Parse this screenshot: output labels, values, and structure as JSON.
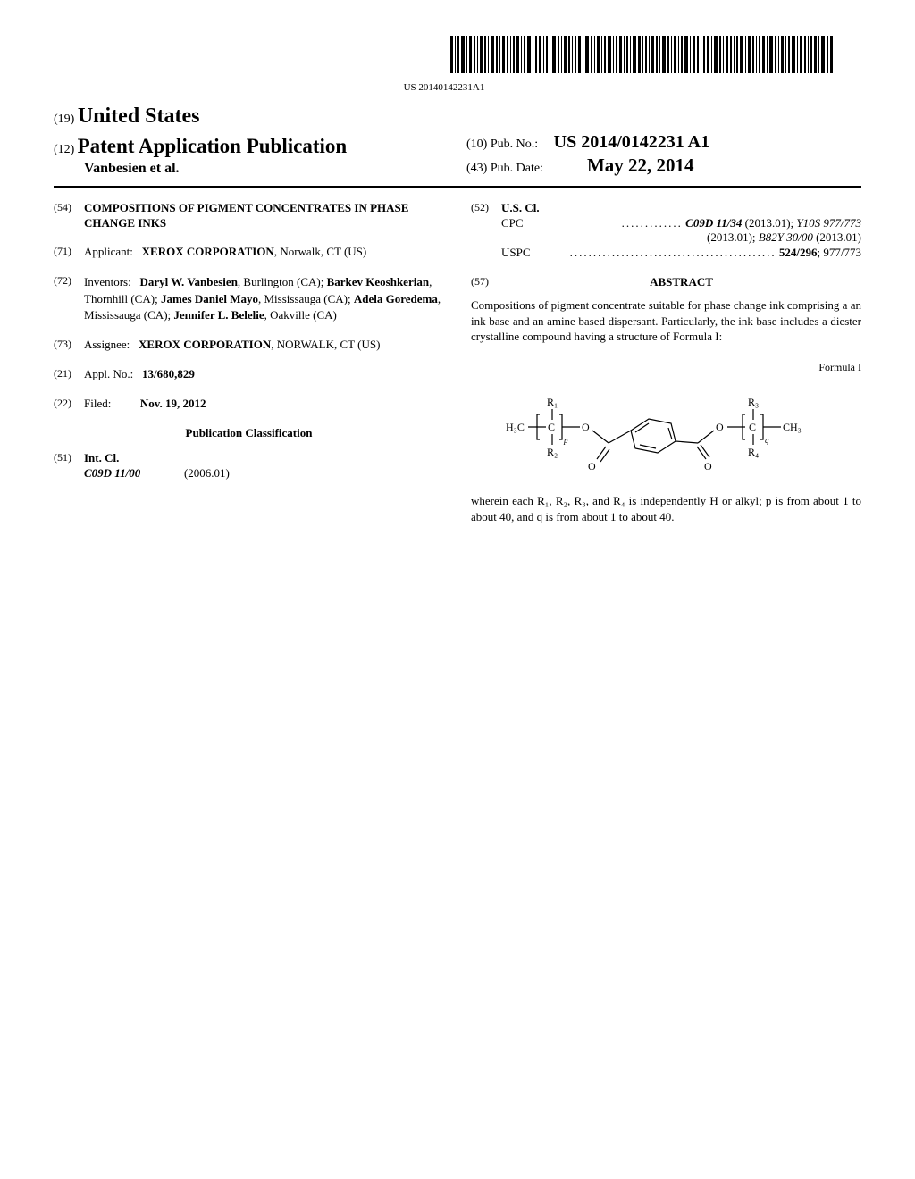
{
  "barcode_text": "US 20140142231A1",
  "header": {
    "country_prefix": "(19)",
    "country": "United States",
    "pub_type_prefix": "(12)",
    "pub_type": "Patent Application Publication",
    "authors": "Vanbesien et al.",
    "pub_no_prefix": "(10)",
    "pub_no_label": "Pub. No.:",
    "pub_no": "US 2014/0142231 A1",
    "pub_date_prefix": "(43)",
    "pub_date_label": "Pub. Date:",
    "pub_date": "May 22, 2014"
  },
  "left": {
    "title": {
      "num": "(54)",
      "text": "COMPOSITIONS OF PIGMENT CONCENTRATES IN PHASE CHANGE INKS"
    },
    "applicant": {
      "num": "(71)",
      "label": "Applicant:",
      "name": "XEROX CORPORATION",
      "location": ", Norwalk, CT (US)"
    },
    "inventors": {
      "num": "(72)",
      "label": "Inventors:",
      "list": [
        {
          "name": "Daryl W. Vanbesien",
          "loc": ", Burlington (CA);"
        },
        {
          "name": "Barkev Keoshkerian",
          "loc": ", Thornhill (CA);"
        },
        {
          "name": "James Daniel Mayo",
          "loc": ", Mississauga (CA);"
        },
        {
          "name": "Adela Goredema",
          "loc": ", Mississauga (CA);"
        },
        {
          "name": "Jennifer L. Belelie",
          "loc": ", Oakville (CA)"
        }
      ]
    },
    "assignee": {
      "num": "(73)",
      "label": "Assignee:",
      "name": "XEROX CORPORATION",
      "location": ", NORWALK, CT (US)"
    },
    "appl_no": {
      "num": "(21)",
      "label": "Appl. No.:",
      "value": "13/680,829"
    },
    "filed": {
      "num": "(22)",
      "label": "Filed:",
      "value": "Nov. 19, 2012"
    },
    "classification_heading": "Publication Classification",
    "int_cl": {
      "num": "(51)",
      "label": "Int. Cl.",
      "code": "C09D 11/00",
      "year": "(2006.01)"
    }
  },
  "right": {
    "us_cl": {
      "num": "(52)",
      "label": "U.S. Cl.",
      "cpc_label": "CPC",
      "cpc_main": "C09D 11/34",
      "cpc_main_year": " (2013.01); ",
      "cpc_2": "Y10S 977/773",
      "cpc_2_year": " (2013.01); ",
      "cpc_3": "B82Y 30/00",
      "cpc_3_year": " (2013.01)",
      "uspc_label": "USPC",
      "uspc_main": "524/296",
      "uspc_rest": "; 977/773"
    },
    "abstract": {
      "num": "(57)",
      "heading": "ABSTRACT",
      "text": "Compositions of pigment concentrate suitable for phase change ink comprising a an ink base and an amine based dispersant. Particularly, the ink base includes a diester crystalline compound having a structure of Formula I:"
    },
    "formula_label": "Formula I",
    "formula_desc": "wherein each R₁, R₂, R₃, and R₄ is independently H or alkyl; p is from about 1 to about 40, and q is from about 1 to about 40."
  }
}
